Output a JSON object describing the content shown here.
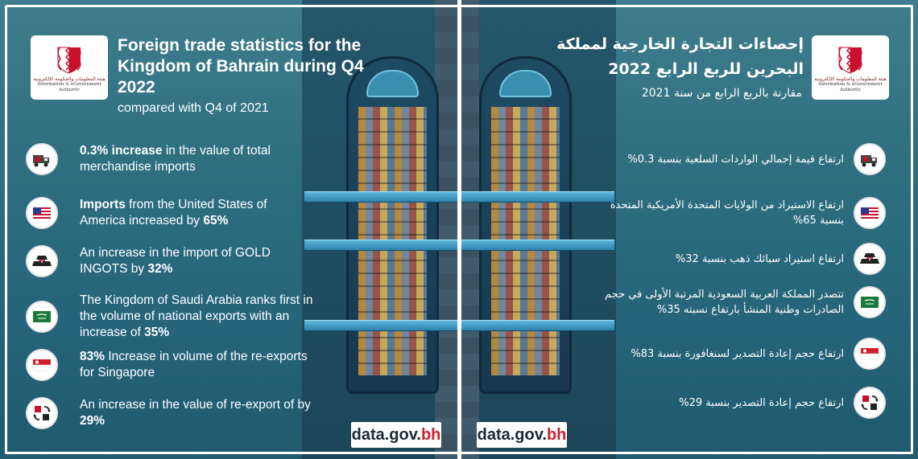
{
  "colors": {
    "background": "#2e6f80",
    "accent_red": "#d0202e",
    "text": "#ffffff"
  },
  "logo": {
    "arabic": "هيئة المعلومات والحكومة الإلكترونية",
    "english_line1": "Information & eGovernment",
    "english_line2": "Authority"
  },
  "english": {
    "title": "Foreign trade statistics for the Kingdom of Bahrain during Q4 2022",
    "subtitle": "compared with Q4 of 2021",
    "items": [
      {
        "icon": "truck-icon",
        "bold": "0.3% increase",
        "text": " in the value of total merchandise imports",
        "tail": ""
      },
      {
        "icon": "us-flag-icon",
        "bold": "Imports",
        "text": " from the United States of America increased by ",
        "tail": "65%"
      },
      {
        "icon": "gold-ingots-icon",
        "bold": "",
        "text": "An increase in the import of GOLD INGOTS by ",
        "tail": "32%"
      },
      {
        "icon": "saudi-flag-icon",
        "bold": "",
        "text": "The Kingdom of Saudi Arabia ranks first in the volume of national exports with an increase of ",
        "tail": "35%"
      },
      {
        "icon": "singapore-flag-icon",
        "bold": "83%",
        "text": " Increase in volume of the re-exports for Singapore",
        "tail": ""
      },
      {
        "icon": "re-export-icon",
        "bold": "",
        "text": "An increase in the value of re-export of by ",
        "tail": "29%"
      }
    ]
  },
  "arabic": {
    "title": "إحصاءات التجارة الخارجية لمملكة البحرين للربع الرابع 2022",
    "subtitle": "مقارنة بالربع الرابع من سنة 2021",
    "items": [
      {
        "icon": "truck-icon",
        "text": "ارتفاع قيمة إجمالي الواردات السلعية بنسبة 0.3%"
      },
      {
        "icon": "us-flag-icon",
        "text": "ارتفاع الاستيراد من الولايات المتحدة الأمريكية المتحدة بنسبة 65%"
      },
      {
        "icon": "gold-ingots-icon",
        "text": "ارتفاع استيراد سبائك ذهب بنسبة 32%"
      },
      {
        "icon": "saudi-flag-icon",
        "text": "تتصدر المملكة العربية السعودية المرتبة الأولى في حجم الصادرات وطنية المنشأ بارتفاع نسبته 35%"
      },
      {
        "icon": "singapore-flag-icon",
        "text": "ارتفاع حجم إعادة التصدير لسنغافورة بنسبة 83%"
      },
      {
        "icon": "re-export-icon",
        "text": "ارتفاع حجم إعادة التصدير بنسبة 29%"
      }
    ]
  },
  "url": {
    "domain": "data.gov.",
    "tld": "bh"
  }
}
